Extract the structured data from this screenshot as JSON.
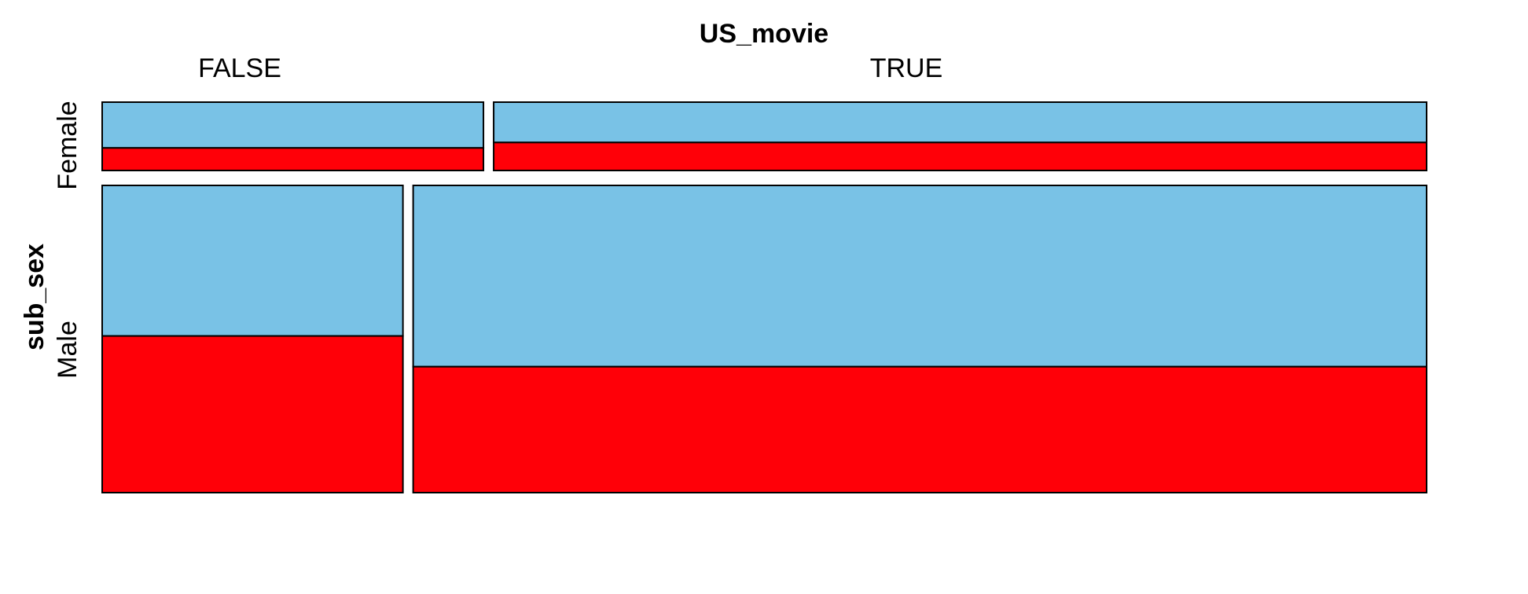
{
  "chart_data": {
    "type": "mosaic",
    "x_variable": "US_movie",
    "y_variable": "sub_sex",
    "x_categories": [
      "FALSE",
      "TRUE"
    ],
    "y_categories": [
      "Female",
      "Male"
    ],
    "fill_levels": [
      "upper",
      "lower"
    ],
    "colors": {
      "upper": "#79c2e6",
      "lower": "#ff0008"
    },
    "proportions": {
      "x_marginal": {
        "FALSE": 0.24,
        "TRUE": 0.76
      },
      "y_given_x": {
        "FALSE": {
          "Female": 0.22,
          "Male": 0.78
        },
        "TRUE": {
          "Female": 0.17,
          "Male": 0.83
        }
      },
      "lower_fill_given_x_y": {
        "FALSE": {
          "Female": 0.33,
          "Male": 0.51
        },
        "TRUE": {
          "Female": 0.41,
          "Male": 0.41
        }
      }
    }
  }
}
